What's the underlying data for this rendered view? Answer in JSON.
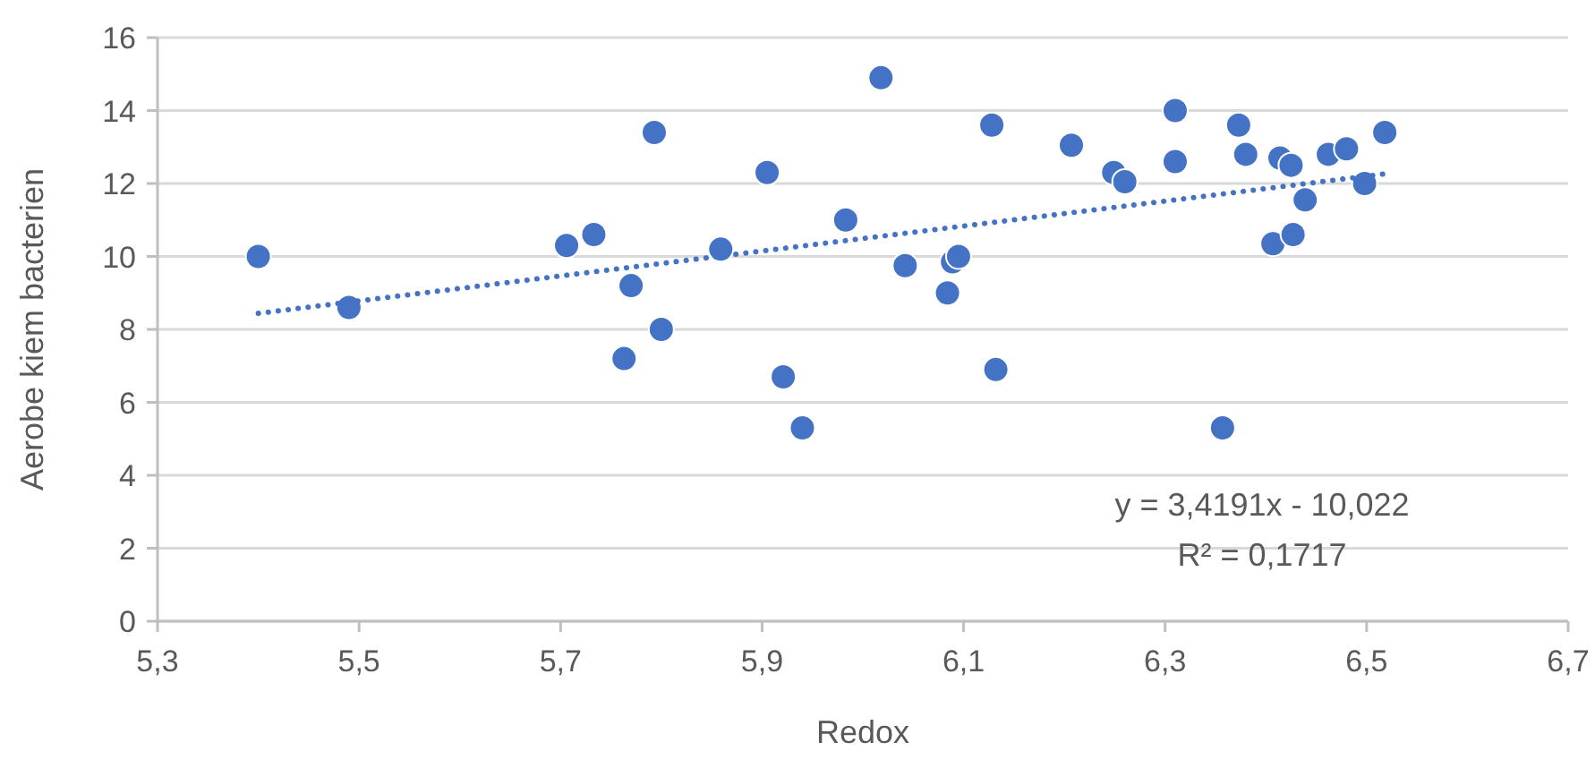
{
  "chart_data": {
    "type": "scatter",
    "xlabel": "Redox",
    "ylabel": "Aerobe kiem bacterien",
    "xlim": [
      5.3,
      6.7
    ],
    "xticks": [
      {
        "value": 5.3,
        "label": "5,3"
      },
      {
        "value": 5.5,
        "label": "5,5"
      },
      {
        "value": 5.7,
        "label": "5,7"
      },
      {
        "value": 5.9,
        "label": "5,9"
      },
      {
        "value": 6.1,
        "label": "6,1"
      },
      {
        "value": 6.3,
        "label": "6,3"
      },
      {
        "value": 6.5,
        "label": "6,5"
      },
      {
        "value": 6.7,
        "label": "6,7"
      }
    ],
    "ylim": [
      0,
      16
    ],
    "yticks": [
      0,
      2,
      4,
      6,
      8,
      10,
      12,
      14,
      16
    ],
    "grid": "y",
    "series": [
      {
        "color": "#4472c4",
        "marker": "circle",
        "x": [
          5.4,
          5.49,
          5.706,
          5.733,
          5.793,
          5.763,
          5.77,
          5.8,
          5.859,
          5.905,
          5.921,
          5.94,
          5.983,
          6.018,
          6.042,
          6.084,
          6.089,
          6.095,
          6.128,
          6.132,
          6.207,
          6.249,
          6.26,
          6.31,
          6.31,
          6.357,
          6.373,
          6.38,
          6.407,
          6.414,
          6.425,
          6.427,
          6.439,
          6.462,
          6.48,
          6.498,
          6.518
        ],
        "values": [
          10.0,
          8.6,
          10.3,
          10.6,
          13.4,
          7.2,
          9.2,
          8.0,
          10.2,
          12.3,
          6.7,
          5.3,
          11.0,
          14.9,
          9.75,
          9.0,
          9.85,
          10.0,
          13.6,
          6.9,
          13.05,
          12.3,
          12.05,
          14.0,
          12.6,
          5.3,
          13.6,
          12.8,
          10.35,
          12.7,
          12.5,
          10.6,
          11.55,
          12.8,
          12.95,
          12.0,
          13.4
        ]
      },
      {
        "type": "line",
        "color": "#4472c4",
        "marker": "none",
        "line_style": "dotted",
        "x": [
          5.4,
          6.52
        ],
        "values": [
          8.44,
          12.27
        ]
      }
    ],
    "annotations": [
      "y = 3,4191x - 10,022",
      "R² = 0,1717"
    ]
  }
}
